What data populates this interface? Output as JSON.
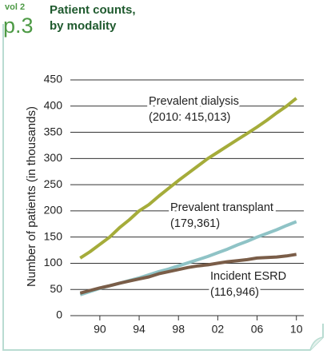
{
  "header": {
    "volume": "vol 2",
    "page": "p.3"
  },
  "chart_data": {
    "type": "line",
    "title": [
      "Patient counts,",
      "by modality"
    ],
    "y_label": "Number of patients (in thousands)",
    "x": [
      1988,
      1989,
      1990,
      1991,
      1992,
      1993,
      1994,
      1995,
      1996,
      1997,
      1998,
      1999,
      2000,
      2001,
      2002,
      2003,
      2004,
      2005,
      2006,
      2007,
      2008,
      2009,
      2010
    ],
    "xlim": [
      1987,
      2011
    ],
    "xticks": [
      {
        "value": 1990,
        "label": "90"
      },
      {
        "value": 1994,
        "label": "94"
      },
      {
        "value": 1998,
        "label": "98"
      },
      {
        "value": 2002,
        "label": "02"
      },
      {
        "value": 2006,
        "label": "06"
      },
      {
        "value": 2010,
        "label": "10"
      }
    ],
    "ylim": [
      0,
      450
    ],
    "yticks": [
      0,
      50,
      100,
      150,
      200,
      250,
      300,
      350,
      400,
      450
    ],
    "grid": true,
    "series": [
      {
        "name": "Prevalent dialysis",
        "color": "#a5ac3a",
        "values": [
          110,
          122,
          136,
          150,
          168,
          183,
          200,
          212,
          228,
          243,
          258,
          272,
          286,
          300,
          312,
          324,
          336,
          348,
          360,
          373,
          387,
          400,
          415.013
        ]
      },
      {
        "name": "Prevalent transplant",
        "color": "#8fc3c6",
        "values": [
          40,
          46,
          52,
          57,
          62,
          67,
          72,
          78,
          84,
          89,
          95,
          101,
          107,
          113,
          120,
          127,
          135,
          142,
          150,
          157,
          164,
          172,
          179.361
        ]
      },
      {
        "name": "Incident ESRD",
        "color": "#7a5d48",
        "values": [
          43,
          48,
          53,
          57,
          62,
          66,
          70,
          74,
          80,
          84,
          88,
          92,
          95,
          97,
          100,
          103,
          105,
          107,
          110,
          111,
          112,
          114,
          116.946
        ]
      }
    ],
    "annotations": [
      [
        "Prevalent dialysis",
        "(2010: 415,013)"
      ],
      [
        "Prevalent transplant",
        "(179,361)"
      ],
      [
        "Incident ESRD",
        "(116,946)"
      ]
    ]
  }
}
